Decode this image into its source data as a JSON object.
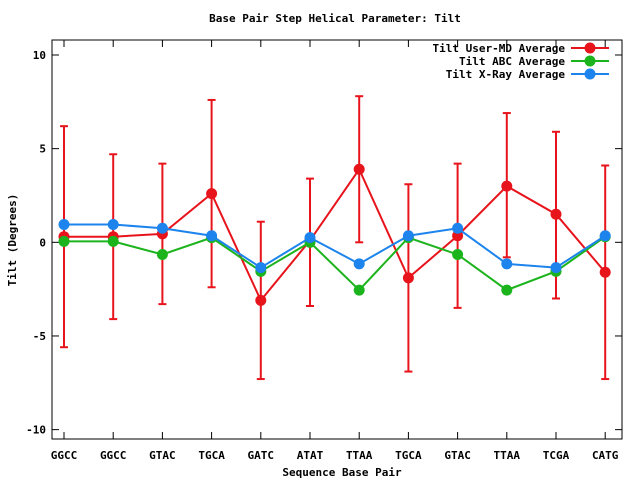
{
  "chart_data": {
    "type": "line",
    "title": "Base Pair Step Helical Parameter: Tilt",
    "xlabel": "Sequence Base Pair",
    "ylabel": "Tilt (Degrees)",
    "categories": [
      "GGCC",
      "GGCC",
      "GTAC",
      "TGCA",
      "GATC",
      "ATAT",
      "TTAA",
      "TGCA",
      "GTAC",
      "TTAA",
      "TCGA",
      "CATG"
    ],
    "ylim": [
      -10.5,
      10.8
    ],
    "yticks": [
      -10,
      -5,
      0,
      5,
      10
    ],
    "grid": false,
    "legend_position": "top-right",
    "series": [
      {
        "name": "Tilt User-MD Average",
        "color": "#e8141c",
        "values": [
          0.3,
          0.3,
          0.45,
          2.6,
          -3.1,
          0.1,
          3.9,
          -1.9,
          0.35,
          3.0,
          1.5,
          -1.6
        ],
        "error_low": [
          -5.6,
          -4.1,
          -3.3,
          -2.4,
          -7.3,
          -3.4,
          0.0,
          -6.9,
          -3.5,
          -0.8,
          -3.0,
          -7.3
        ],
        "error_high": [
          6.2,
          4.7,
          4.2,
          7.6,
          1.1,
          3.4,
          7.8,
          3.1,
          4.2,
          6.9,
          5.9,
          4.1
        ]
      },
      {
        "name": "Tilt ABC Average",
        "color": "#1cb41c",
        "values": [
          0.05,
          0.05,
          -0.65,
          0.25,
          -1.55,
          0.0,
          -2.55,
          0.25,
          -0.65,
          -2.55,
          -1.55,
          0.3
        ]
      },
      {
        "name": "Tilt X-Ray Average",
        "color": "#1c84ec",
        "values": [
          0.95,
          0.95,
          0.75,
          0.35,
          -1.35,
          0.25,
          -1.15,
          0.35,
          0.75,
          -1.15,
          -1.35,
          0.35
        ]
      }
    ]
  }
}
